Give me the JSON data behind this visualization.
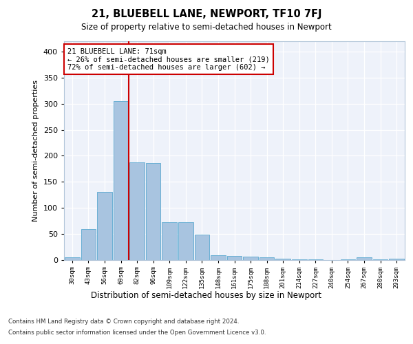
{
  "title": "21, BLUEBELL LANE, NEWPORT, TF10 7FJ",
  "subtitle": "Size of property relative to semi-detached houses in Newport",
  "xlabel": "Distribution of semi-detached houses by size in Newport",
  "ylabel": "Number of semi-detached properties",
  "footnote1": "Contains HM Land Registry data © Crown copyright and database right 2024.",
  "footnote2": "Contains public sector information licensed under the Open Government Licence v3.0.",
  "annotation_line1": "21 BLUEBELL LANE: 71sqm",
  "annotation_line2": "← 26% of semi-detached houses are smaller (219)",
  "annotation_line3": "72% of semi-detached houses are larger (602) →",
  "bar_color": "#a8c4e0",
  "bar_edge_color": "#6aafd4",
  "vline_color": "#cc0000",
  "background_color": "#eef2fa",
  "categories": [
    "30sqm",
    "43sqm",
    "56sqm",
    "69sqm",
    "82sqm",
    "96sqm",
    "109sqm",
    "122sqm",
    "135sqm",
    "148sqm",
    "161sqm",
    "175sqm",
    "188sqm",
    "201sqm",
    "214sqm",
    "227sqm",
    "240sqm",
    "254sqm",
    "267sqm",
    "280sqm",
    "293sqm"
  ],
  "values": [
    5,
    59,
    130,
    305,
    187,
    186,
    72,
    72,
    48,
    9,
    7,
    6,
    4,
    2,
    1,
    1,
    0,
    1,
    4,
    1,
    2
  ],
  "ylim": [
    0,
    420
  ],
  "yticks": [
    0,
    50,
    100,
    150,
    200,
    250,
    300,
    350,
    400
  ],
  "vline_x_index": 3.5
}
